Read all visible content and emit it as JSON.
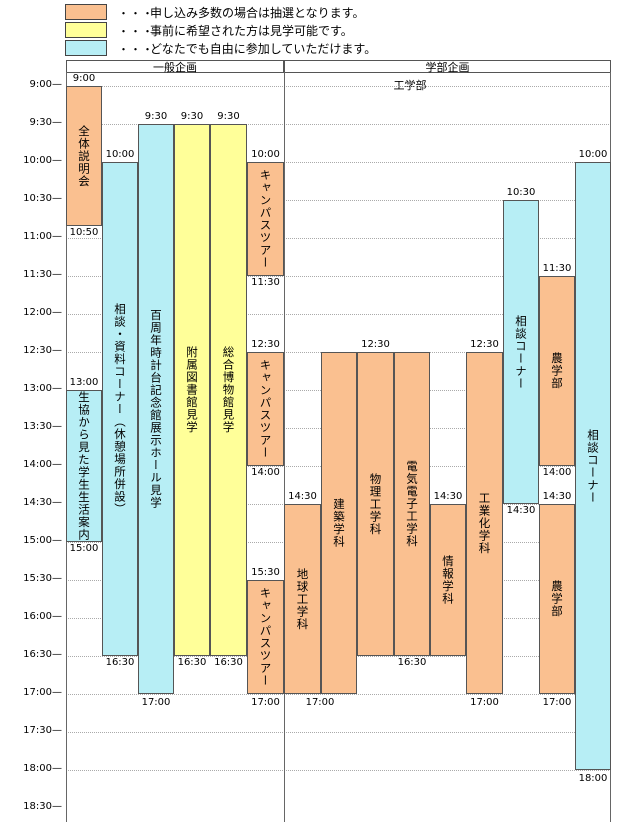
{
  "colors": {
    "orange": "#fac090",
    "yellow": "#ffff99",
    "cyan": "#b7eef5"
  },
  "legend": [
    {
      "dots": "・・・",
      "text": "申し込み多数の場合は抽選となります。"
    },
    {
      "dots": "・・・",
      "text": "事前に希望された方は見学可能です。"
    },
    {
      "dots": "・・・",
      "text": "どなたでも自由に参加していただけます。"
    }
  ],
  "headers": {
    "general": "一般企画",
    "faculty": "学部企画",
    "engineering": "工学部"
  },
  "axis": [
    "9:00",
    "9:30",
    "10:00",
    "10:30",
    "11:00",
    "11:30",
    "12:00",
    "12:30",
    "13:00",
    "13:30",
    "14:00",
    "14:30",
    "15:00",
    "15:30",
    "16:00",
    "16:30",
    "17:00",
    "17:30",
    "18:00",
    "18:30"
  ],
  "events": {
    "setsumeikai": {
      "label": "全体説明会",
      "start": "9:00",
      "end": "10:50"
    },
    "seikyo": {
      "label": "生協から見た学生生活案内",
      "start": "13:00",
      "end": "15:00"
    },
    "soudan1": {
      "label": "相談・資料コーナー（休憩場所併設）",
      "start": "10:00",
      "end": "16:30"
    },
    "hyakushunen": {
      "label": "百周年時計台記念館展示ホール見学",
      "start": "9:30",
      "end": "17:00"
    },
    "toshokan": {
      "label": "附属図書館見学",
      "start": "9:30",
      "end": "16:30"
    },
    "hakubutsukan": {
      "label": "総合博物館見学",
      "start": "9:30",
      "end": "16:30"
    },
    "campus1": {
      "label": "キャンパスツアー",
      "start": "10:00",
      "end": "11:30"
    },
    "campus2": {
      "label": "キャンパスツアー",
      "start": "12:30",
      "end": "14:00"
    },
    "campus3": {
      "label": "キャンパスツアー",
      "start": "15:30",
      "end": "17:00"
    },
    "chikyu": {
      "label": "地球工学科",
      "start": "14:30",
      "end": "17:00"
    },
    "kenchiku": {
      "label": "建築学科",
      "start": "12:30",
      "end": "17:00"
    },
    "butsuri": {
      "label": "物理工学科",
      "start": "12:30",
      "end": "16:30"
    },
    "denki": {
      "label": "電気電子工学科",
      "start": "12:30",
      "end": "16:30"
    },
    "joho": {
      "label": "情報学科",
      "start": "14:30",
      "end": "16:30"
    },
    "kogyoka": {
      "label": "工業化学科",
      "start": "12:30",
      "end": "17:00"
    },
    "soudan2": {
      "label": "相談コーナー",
      "start": "10:30",
      "end": "14:30"
    },
    "nogaku1": {
      "label": "農学部",
      "start": "11:30",
      "end": "14:00"
    },
    "nogaku2": {
      "label": "農学部",
      "start": "14:30",
      "end": "17:00"
    },
    "soudan3": {
      "label": "相談コーナー",
      "start": "10:00",
      "end": "18:00"
    }
  }
}
